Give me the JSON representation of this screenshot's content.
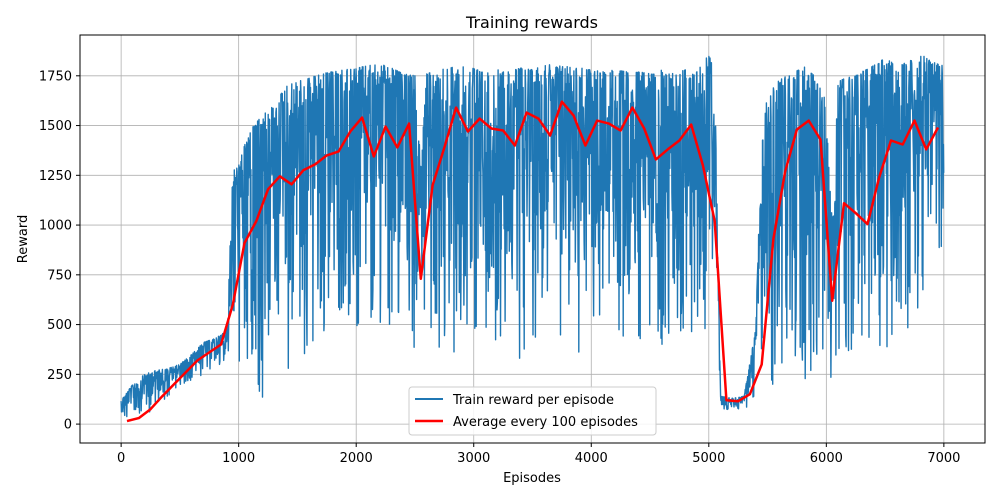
{
  "chart_data": {
    "type": "line",
    "title": "Training rewards",
    "xlabel": "Episodes",
    "ylabel": "Reward",
    "xlim": [
      -350,
      7350
    ],
    "ylim": [
      -95,
      1955
    ],
    "x_ticks": [
      0,
      1000,
      2000,
      3000,
      4000,
      5000,
      6000,
      7000
    ],
    "x_tick_labels": [
      "0",
      "1000",
      "2000",
      "3000",
      "4000",
      "5000",
      "6000",
      "7000"
    ],
    "y_ticks": [
      0,
      250,
      500,
      750,
      1000,
      1250,
      1500,
      1750
    ],
    "y_tick_labels": [
      "0",
      "250",
      "500",
      "750",
      "1000",
      "1250",
      "1500",
      "1750"
    ],
    "grid": true,
    "legend_position": "bottom-center",
    "series": [
      {
        "name": "Train reward per episode",
        "color": "#1f77b4",
        "style": "noisy-band",
        "x": [
          0,
          100,
          200,
          300,
          400,
          500,
          600,
          700,
          800,
          900,
          950,
          1000,
          1050,
          1100,
          1200,
          1300,
          1400,
          1500,
          1600,
          1700,
          1800,
          1900,
          2000,
          2100,
          2200,
          2300,
          2400,
          2500,
          2550,
          2600,
          2700,
          2800,
          2900,
          3000,
          3100,
          3200,
          3300,
          3400,
          3500,
          3600,
          3700,
          3800,
          3900,
          4000,
          4100,
          4200,
          4300,
          4400,
          4500,
          4600,
          4700,
          4800,
          4900,
          5000,
          5050,
          5100,
          5200,
          5300,
          5400,
          5450,
          5500,
          5600,
          5700,
          5800,
          5900,
          6000,
          6050,
          6100,
          6200,
          6300,
          6400,
          6500,
          6600,
          6700,
          6800,
          6900,
          7000
        ],
        "upper": [
          120,
          200,
          250,
          270,
          280,
          300,
          350,
          410,
          430,
          470,
          1270,
          1300,
          1400,
          1480,
          1550,
          1600,
          1700,
          1720,
          1740,
          1760,
          1770,
          1780,
          1790,
          1800,
          1810,
          1790,
          1760,
          1750,
          1300,
          1760,
          1780,
          1790,
          1800,
          1790,
          1760,
          1780,
          1770,
          1790,
          1780,
          1810,
          1800,
          1800,
          1790,
          1780,
          1770,
          1780,
          1770,
          1770,
          1760,
          1780,
          1760,
          1780,
          1770,
          1860,
          1760,
          140,
          130,
          140,
          480,
          1520,
          1650,
          1730,
          1760,
          1800,
          1750,
          1620,
          1000,
          1720,
          1750,
          1770,
          1800,
          1840,
          1800,
          1820,
          1860,
          1820,
          1800
        ],
        "lower": [
          10,
          20,
          40,
          60,
          140,
          190,
          220,
          250,
          280,
          300,
          330,
          250,
          200,
          180,
          100,
          700,
          250,
          270,
          300,
          400,
          500,
          600,
          400,
          250,
          500,
          500,
          450,
          380,
          390,
          400,
          330,
          200,
          420,
          400,
          430,
          420,
          350,
          320,
          350,
          380,
          420,
          330,
          260,
          340,
          380,
          410,
          400,
          330,
          370,
          390,
          350,
          360,
          380,
          400,
          1060,
          60,
          70,
          80,
          90,
          240,
          130,
          180,
          180,
          220,
          250,
          200,
          200,
          250,
          280,
          350,
          390,
          380,
          420,
          420,
          570,
          860,
          900
        ]
      },
      {
        "name": "Average every 100 episodes",
        "color": "#ff0000",
        "style": "line",
        "x": [
          50,
          150,
          250,
          350,
          450,
          550,
          650,
          750,
          850,
          950,
          1050,
          1150,
          1250,
          1350,
          1450,
          1550,
          1650,
          1750,
          1850,
          1950,
          2050,
          2150,
          2250,
          2350,
          2450,
          2550,
          2650,
          2750,
          2850,
          2950,
          3050,
          3150,
          3250,
          3350,
          3450,
          3550,
          3650,
          3750,
          3850,
          3950,
          4050,
          4150,
          4250,
          4350,
          4450,
          4550,
          4650,
          4750,
          4850,
          4950,
          5050,
          5150,
          5250,
          5350,
          5450,
          5550,
          5650,
          5750,
          5850,
          5950,
          6050,
          6150,
          6250,
          6350,
          6450,
          6550,
          6650,
          6750,
          6850,
          6950
        ],
        "values": [
          15,
          30,
          75,
          140,
          200,
          260,
          320,
          360,
          400,
          600,
          910,
          1020,
          1180,
          1245,
          1205,
          1275,
          1305,
          1350,
          1370,
          1470,
          1540,
          1345,
          1495,
          1390,
          1510,
          730,
          1200,
          1390,
          1590,
          1470,
          1535,
          1485,
          1475,
          1400,
          1565,
          1535,
          1450,
          1620,
          1550,
          1400,
          1525,
          1510,
          1475,
          1590,
          1485,
          1330,
          1380,
          1425,
          1505,
          1300,
          1020,
          120,
          115,
          150,
          300,
          930,
          1270,
          1480,
          1525,
          1430,
          620,
          1110,
          1060,
          1005,
          1240,
          1425,
          1405,
          1525,
          1380,
          1490
        ]
      }
    ]
  }
}
